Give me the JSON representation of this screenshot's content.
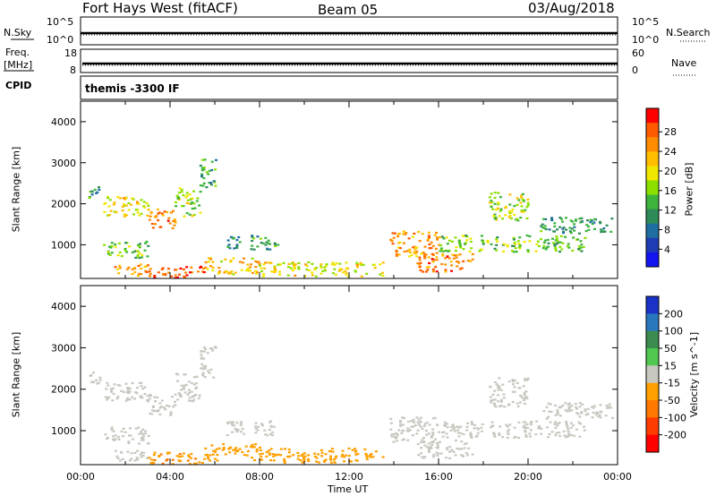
{
  "header": {
    "station": "Fort Hays West (fitACF)",
    "beam": "Beam 05",
    "date": "03/Aug/2018"
  },
  "noise_panel": {
    "left_label": "N.Sky",
    "right_label": "N.Search",
    "left_ticks": [
      "10^5",
      "10^0"
    ],
    "right_ticks": [
      "10^5",
      "10^0"
    ]
  },
  "freq_panel": {
    "left_label_1": "Freq.",
    "left_label_2": "[MHz]",
    "right_label": "Nave",
    "left_ticks": [
      "18",
      "8"
    ],
    "right_ticks": [
      "60",
      "0"
    ]
  },
  "cpid_panel": {
    "label": "CPID",
    "value": "themis -3300 IF"
  },
  "power_panel": {
    "ylabel": "Slant Range [km]",
    "cbar_label": "Power [dB]",
    "y_ticks": [
      "4000",
      "3000",
      "2000",
      "1000"
    ],
    "cbar_ticks": [
      "28",
      "24",
      "20",
      "16",
      "12",
      "8",
      "4"
    ],
    "cbar_colors": [
      "#ff0000",
      "#ff5a00",
      "#ff8c00",
      "#ffbe00",
      "#f0e600",
      "#8ce000",
      "#3cb43c",
      "#2e8b57",
      "#1e6ea0",
      "#1e3cb4",
      "#1414f0"
    ]
  },
  "velocity_panel": {
    "ylabel": "Slant Range [km]",
    "cbar_label": "Velocity [m s^-1]",
    "y_ticks": [
      "4000",
      "3000",
      "2000",
      "1000"
    ],
    "cbar_ticks": [
      "200",
      "100",
      "50",
      "15",
      "-15",
      "-50",
      "-100",
      "-200"
    ],
    "cbar_colors": [
      "#1a32c8",
      "#2878be",
      "#3c8c50",
      "#50c850",
      "#c8c8c0",
      "#ffa000",
      "#ff7800",
      "#ff3c00",
      "#ff0000"
    ]
  },
  "x_axis": {
    "label": "Time UT",
    "ticks": [
      "00:00",
      "04:00",
      "08:00",
      "12:00",
      "16:00",
      "20:00",
      "00:00"
    ]
  },
  "chart_data": {
    "type": "heatmap",
    "title": "Fort Hays West (fitACF)",
    "subtitle": "Beam 05",
    "xlabel": "Time UT",
    "ylabel": "Slant Range [km]",
    "x_range_hours": [
      0,
      24
    ],
    "y_range_km": [
      180,
      4500
    ],
    "panels": [
      {
        "name": "Power",
        "unit": "dB",
        "scale_range": [
          0,
          30
        ],
        "echo_regions": [
          {
            "t0": 0.3,
            "t1": 1.0,
            "r0": 2150,
            "r1": 2450,
            "value": 10
          },
          {
            "t0": 1.0,
            "t1": 3.0,
            "r0": 1700,
            "r1": 2200,
            "value": 18
          },
          {
            "t0": 3.0,
            "t1": 4.2,
            "r0": 1400,
            "r1": 1900,
            "value": 24
          },
          {
            "t0": 4.2,
            "t1": 5.3,
            "r0": 1700,
            "r1": 2400,
            "value": 16
          },
          {
            "t0": 5.3,
            "t1": 6.0,
            "r0": 2300,
            "r1": 3100,
            "value": 12
          },
          {
            "t0": 1.0,
            "t1": 3.0,
            "r0": 700,
            "r1": 1100,
            "value": 14
          },
          {
            "t0": 1.5,
            "t1": 3.0,
            "r0": 250,
            "r1": 550,
            "value": 22
          },
          {
            "t0": 3.0,
            "t1": 5.5,
            "r0": 200,
            "r1": 500,
            "value": 26
          },
          {
            "t0": 5.5,
            "t1": 8.0,
            "r0": 300,
            "r1": 700,
            "value": 20
          },
          {
            "t0": 6.5,
            "t1": 8.8,
            "r0": 900,
            "r1": 1250,
            "value": 10
          },
          {
            "t0": 8.0,
            "t1": 13.5,
            "r0": 250,
            "r1": 600,
            "value": 18
          },
          {
            "t0": 13.8,
            "t1": 16.0,
            "r0": 700,
            "r1": 1350,
            "value": 22
          },
          {
            "t0": 15.0,
            "t1": 17.5,
            "r0": 350,
            "r1": 800,
            "value": 24
          },
          {
            "t0": 16.0,
            "t1": 22.5,
            "r0": 850,
            "r1": 1250,
            "value": 14
          },
          {
            "t0": 18.2,
            "t1": 20.0,
            "r0": 1600,
            "r1": 2300,
            "value": 16
          },
          {
            "t0": 20.5,
            "t1": 23.8,
            "r0": 1300,
            "r1": 1700,
            "value": 10
          }
        ]
      },
      {
        "name": "Velocity",
        "unit": "m s^-1",
        "scale_range": [
          -200,
          200
        ],
        "echo_regions": [
          {
            "t0": 0.3,
            "t1": 1.0,
            "r0": 2150,
            "r1": 2450,
            "value": 0
          },
          {
            "t0": 1.0,
            "t1": 3.0,
            "r0": 1700,
            "r1": 2200,
            "value": 0
          },
          {
            "t0": 3.0,
            "t1": 4.2,
            "r0": 1400,
            "r1": 1900,
            "value": 0
          },
          {
            "t0": 4.2,
            "t1": 5.3,
            "r0": 1700,
            "r1": 2400,
            "value": 0
          },
          {
            "t0": 5.3,
            "t1": 6.0,
            "r0": 2300,
            "r1": 3100,
            "value": 0
          },
          {
            "t0": 1.0,
            "t1": 3.0,
            "r0": 700,
            "r1": 1100,
            "value": 0
          },
          {
            "t0": 1.5,
            "t1": 3.0,
            "r0": 250,
            "r1": 550,
            "value": 0
          },
          {
            "t0": 3.0,
            "t1": 5.5,
            "r0": 200,
            "r1": 500,
            "value": -60
          },
          {
            "t0": 5.5,
            "t1": 8.0,
            "r0": 300,
            "r1": 700,
            "value": -40
          },
          {
            "t0": 6.5,
            "t1": 8.8,
            "r0": 900,
            "r1": 1250,
            "value": 0
          },
          {
            "t0": 8.0,
            "t1": 13.5,
            "r0": 250,
            "r1": 600,
            "value": -45
          },
          {
            "t0": 13.8,
            "t1": 16.0,
            "r0": 700,
            "r1": 1350,
            "value": 0
          },
          {
            "t0": 15.0,
            "t1": 17.5,
            "r0": 350,
            "r1": 800,
            "value": 0
          },
          {
            "t0": 16.0,
            "t1": 22.5,
            "r0": 850,
            "r1": 1250,
            "value": 0
          },
          {
            "t0": 18.2,
            "t1": 20.0,
            "r0": 1600,
            "r1": 2300,
            "value": 0
          },
          {
            "t0": 20.5,
            "t1": 23.8,
            "r0": 1300,
            "r1": 1700,
            "value": 0
          }
        ]
      }
    ]
  }
}
